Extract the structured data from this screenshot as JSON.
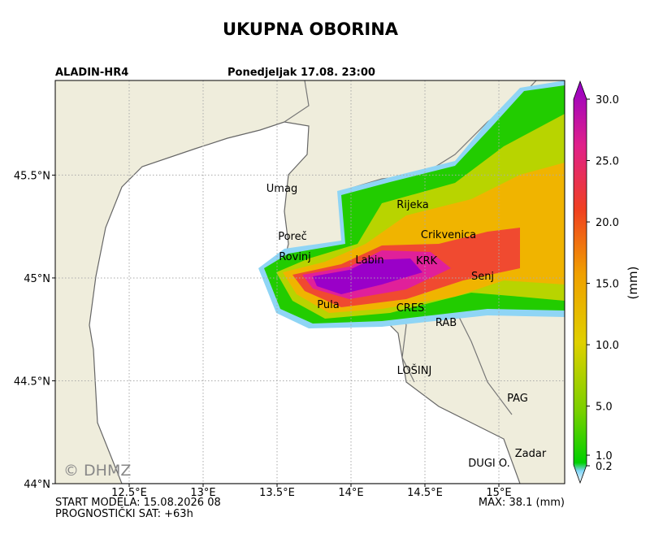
{
  "title": "UKUPNA OBORINA",
  "model": "ALADIN-HR4",
  "valid_time": "Ponedjeljak 17.08. 23:00",
  "map": {
    "lon_range": [
      12.0,
      15.445
    ],
    "lat_range": [
      44.0,
      45.96
    ],
    "lon_ticks": [
      {
        "value": 12.5,
        "label": "12.5°E"
      },
      {
        "value": 13,
        "label": "13°E"
      },
      {
        "value": 13.5,
        "label": "13.5°E"
      },
      {
        "value": 14,
        "label": "14°E"
      },
      {
        "value": 14.5,
        "label": "14.5°E"
      },
      {
        "value": 15,
        "label": "15°E"
      }
    ],
    "lat_ticks": [
      {
        "value": 44,
        "label": "44°N"
      },
      {
        "value": 44.5,
        "label": "44.5°N"
      },
      {
        "value": 45,
        "label": "45°N"
      },
      {
        "value": 45.5,
        "label": "45.5°N"
      }
    ],
    "places": [
      "Umag",
      "Rijeka",
      "Poreč",
      "Crikvenica",
      "Rovinj",
      "Labin",
      "KRK",
      "Senj",
      "Pula",
      "CRES",
      "RAB",
      "LOŠINJ",
      "PAG",
      "Zadar",
      "DUGI O."
    ],
    "watermark": "© DHMZ"
  },
  "colorbar": {
    "label": "(mm)",
    "ticks": [
      {
        "value": 0.2,
        "label": "0.2"
      },
      {
        "value": 1,
        "label": "1.0"
      },
      {
        "value": 5,
        "label": "5.0"
      },
      {
        "value": 10,
        "label": "10.0"
      },
      {
        "value": 15,
        "label": "15.0"
      },
      {
        "value": 20,
        "label": "20.0"
      },
      {
        "value": 25,
        "label": "25.0"
      },
      {
        "value": 30,
        "label": "30.0"
      }
    ]
  },
  "footer": {
    "start": "START MODELA: 15.08.2026 08",
    "forecast_hour": "PROGNOSTIČKI SAT: +63h",
    "max": "MAX: 38.1 (mm)"
  }
}
